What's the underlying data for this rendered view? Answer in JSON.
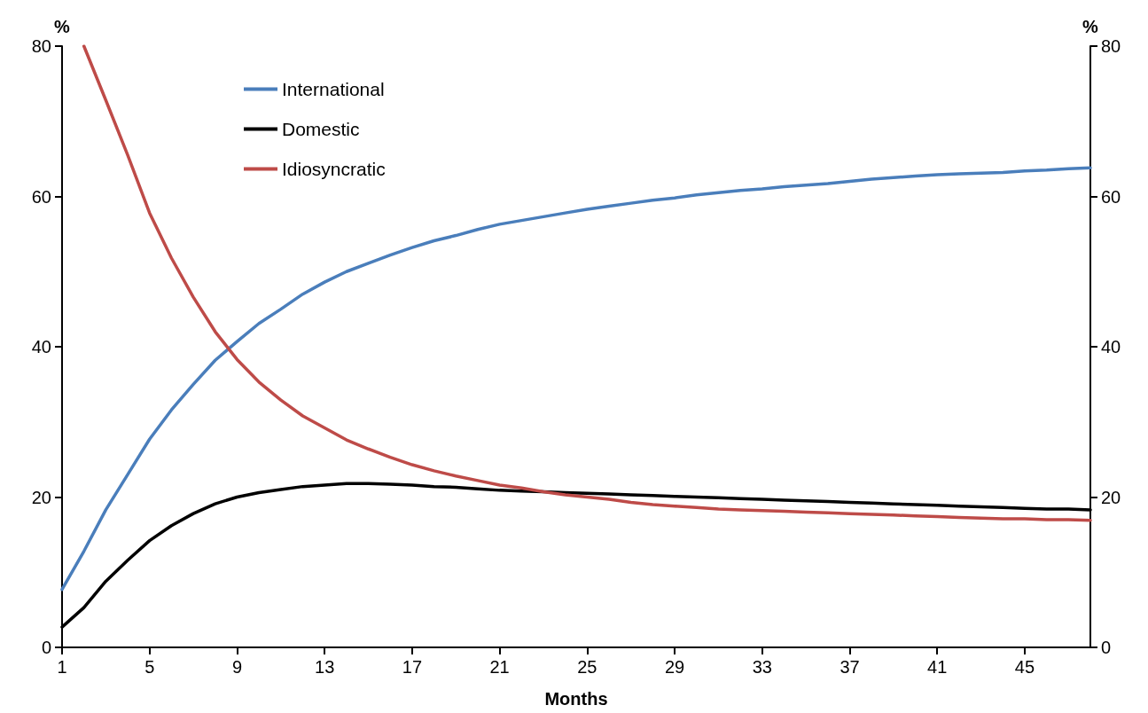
{
  "chart_data": {
    "type": "line",
    "xlabel": "Months",
    "ylabel": "%",
    "y2label": "%",
    "x": [
      1,
      2,
      3,
      4,
      5,
      6,
      7,
      8,
      9,
      10,
      11,
      12,
      13,
      14,
      15,
      16,
      17,
      18,
      19,
      20,
      21,
      22,
      23,
      24,
      25,
      26,
      27,
      28,
      29,
      30,
      31,
      32,
      33,
      34,
      35,
      36,
      37,
      38,
      39,
      40,
      41,
      42,
      43,
      44,
      45,
      46,
      47,
      48
    ],
    "xlim": [
      1,
      48
    ],
    "xticks": [
      1,
      5,
      9,
      13,
      17,
      21,
      25,
      29,
      33,
      37,
      41,
      45
    ],
    "ylim": [
      0,
      80
    ],
    "yticks": [
      0,
      20,
      40,
      60,
      80
    ],
    "y2lim": [
      0,
      80
    ],
    "y2ticks": [
      0,
      20,
      40,
      60,
      80
    ],
    "grid": false,
    "legend": "top left",
    "marker": "none",
    "line_style": "solid",
    "series": [
      {
        "name": "International",
        "color": "#4a7ebb",
        "values": [
          7.7,
          12.8,
          18.3,
          23,
          27.7,
          31.6,
          35,
          38.2,
          40.7,
          43.1,
          45,
          47,
          48.6,
          50,
          51.1,
          52.2,
          53.2,
          54.1,
          54.8,
          55.6,
          56.3,
          56.8,
          57.3,
          57.8,
          58.3,
          58.7,
          59.1,
          59.5,
          59.8,
          60.2,
          60.5,
          60.8,
          61,
          61.3,
          61.5,
          61.7,
          62,
          62.3,
          62.5,
          62.7,
          62.9,
          63,
          63.1,
          63.2,
          63.4,
          63.5,
          63.7,
          63.8
        ]
      },
      {
        "name": "Domestic",
        "color": "#000000",
        "values": [
          2.7,
          5.3,
          8.8,
          11.6,
          14.2,
          16.2,
          17.8,
          19.1,
          20,
          20.6,
          21,
          21.4,
          21.6,
          21.8,
          21.8,
          21.7,
          21.6,
          21.4,
          21.3,
          21.1,
          20.9,
          20.8,
          20.7,
          20.6,
          20.5,
          20.4,
          20.3,
          20.2,
          20.1,
          20,
          19.9,
          19.8,
          19.7,
          19.6,
          19.5,
          19.4,
          19.3,
          19.2,
          19.1,
          19,
          18.9,
          18.8,
          18.7,
          18.6,
          18.5,
          18.4,
          18.4,
          18.3
        ]
      },
      {
        "name": "Idiosyncratic",
        "color": "#be4b48",
        "values": [
          null,
          80,
          72.8,
          65.5,
          57.8,
          51.8,
          46.6,
          42,
          38.3,
          35.3,
          32.9,
          30.8,
          29.2,
          27.6,
          26.4,
          25.3,
          24.3,
          23.5,
          22.8,
          22.2,
          21.6,
          21.2,
          20.7,
          20.3,
          20,
          19.7,
          19.3,
          19,
          18.8,
          18.6,
          18.4,
          18.3,
          18.2,
          18.1,
          18,
          17.9,
          17.8,
          17.7,
          17.6,
          17.5,
          17.4,
          17.3,
          17.2,
          17.1,
          17.1,
          17,
          17,
          16.9
        ]
      }
    ]
  }
}
